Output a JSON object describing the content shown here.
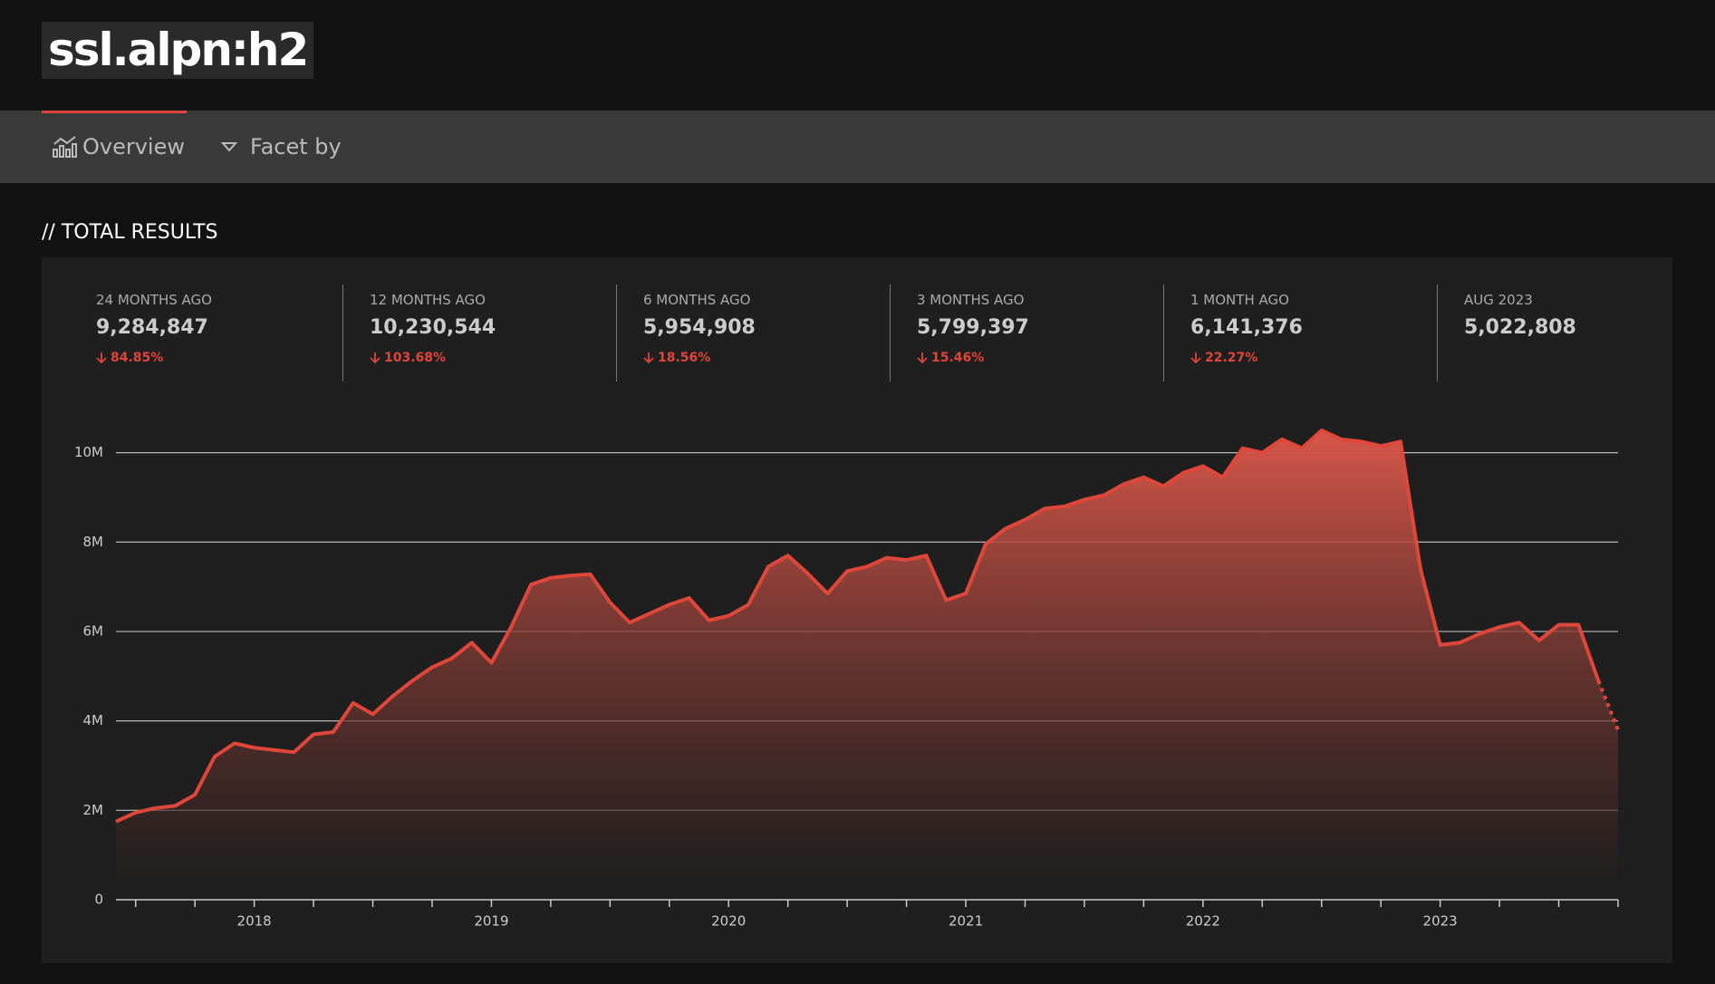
{
  "header": {
    "title": "ssl.alpn:h2"
  },
  "nav": {
    "tabs": [
      "Overview",
      "Facet by"
    ]
  },
  "section_title": "// TOTAL RESULTS",
  "stats": [
    {
      "label": "24 MONTHS AGO",
      "value": "9,284,847",
      "change": "84.85%"
    },
    {
      "label": "12 MONTHS AGO",
      "value": "10,230,544",
      "change": "103.68%"
    },
    {
      "label": "6 MONTHS AGO",
      "value": "5,954,908",
      "change": "18.56%"
    },
    {
      "label": "3 MONTHS AGO",
      "value": "5,799,397",
      "change": "15.46%"
    },
    {
      "label": "1 MONTH AGO",
      "value": "6,141,376",
      "change": "22.27%"
    },
    {
      "label": "AUG 2023",
      "value": "5,022,808"
    }
  ],
  "chart_data": {
    "type": "area",
    "color": "#e0473b",
    "x": [
      2017.417,
      2017.5,
      2017.583,
      2017.667,
      2017.75,
      2017.833,
      2017.917,
      2018,
      2018.083,
      2018.167,
      2018.25,
      2018.333,
      2018.417,
      2018.5,
      2018.583,
      2018.667,
      2018.75,
      2018.833,
      2018.917,
      2019,
      2019.083,
      2019.167,
      2019.25,
      2019.333,
      2019.417,
      2019.5,
      2019.583,
      2019.667,
      2019.75,
      2019.833,
      2019.917,
      2020,
      2020.083,
      2020.167,
      2020.25,
      2020.333,
      2020.417,
      2020.5,
      2020.583,
      2020.667,
      2020.75,
      2020.833,
      2020.917,
      2021,
      2021.083,
      2021.167,
      2021.25,
      2021.333,
      2021.417,
      2021.5,
      2021.583,
      2021.667,
      2021.75,
      2021.833,
      2021.917,
      2022,
      2022.083,
      2022.167,
      2022.25,
      2022.333,
      2022.417,
      2022.5,
      2022.583,
      2022.667,
      2022.75,
      2022.833,
      2022.917,
      2023,
      2023.083,
      2023.167,
      2023.25,
      2023.333,
      2023.417,
      2023.5,
      2023.583,
      2023.667,
      2023.75
    ],
    "values": [
      1750000,
      1950000,
      2050000,
      2100000,
      2350000,
      3200000,
      3500000,
      3400000,
      3350000,
      3300000,
      3700000,
      3750000,
      4400000,
      4150000,
      4550000,
      4900000,
      5200000,
      5400000,
      5750000,
      5300000,
      6100000,
      7050000,
      7200000,
      7250000,
      7280000,
      6650000,
      6200000,
      6400000,
      6600000,
      6750000,
      6250000,
      6350000,
      6600000,
      7450000,
      7700000,
      7300000,
      6850000,
      7350000,
      7450000,
      7650000,
      7600000,
      7700000,
      6700000,
      6850000,
      7950000,
      8300000,
      8500000,
      8750000,
      8800000,
      8950000,
      9050000,
      9300000,
      9450000,
      9250000,
      9550000,
      9700000,
      9450000,
      10100000,
      10000000,
      10300000,
      10100000,
      10500000,
      10300000,
      10250000,
      10150000,
      10250000,
      7400000,
      5700000,
      5750000,
      5950000,
      6100000,
      6200000,
      5800000,
      6150000,
      6150000,
      4900000,
      3800000
    ],
    "dotted_from_index": 75,
    "xlim": [
      2017.417,
      2023.75
    ],
    "xticks": [
      2018,
      2019,
      2020,
      2021,
      2022,
      2023
    ],
    "xminorticks": [
      2017.5,
      2017.75,
      2018.25,
      2018.5,
      2018.75,
      2019.25,
      2019.5,
      2019.75,
      2020.25,
      2020.5,
      2020.75,
      2021.25,
      2021.5,
      2021.75,
      2022.25,
      2022.5,
      2022.75,
      2023.25,
      2023.5,
      2023.75
    ],
    "ylim": [
      0,
      10600000
    ],
    "yticks": [
      {
        "value": 0,
        "label": "0"
      },
      {
        "value": 2000000,
        "label": "2M"
      },
      {
        "value": 4000000,
        "label": "4M"
      },
      {
        "value": 6000000,
        "label": "6M"
      },
      {
        "value": 8000000,
        "label": "8M"
      },
      {
        "value": 10000000,
        "label": "10M"
      }
    ],
    "grid": true
  }
}
